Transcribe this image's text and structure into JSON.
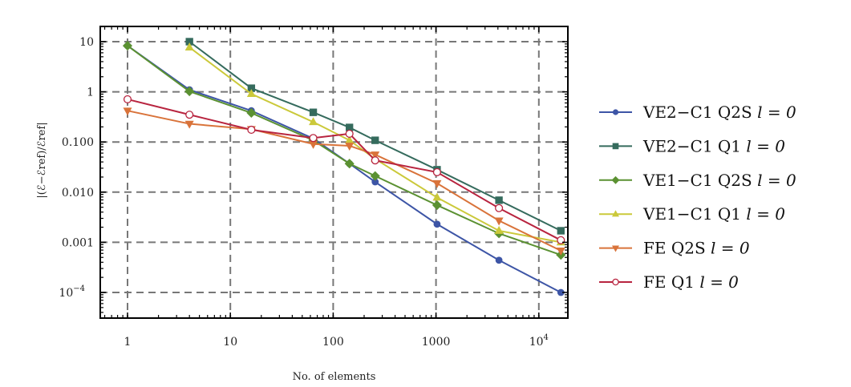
{
  "chart_data": {
    "type": "line",
    "xlabel": "No. of elements",
    "ylabel": "|(ℰ−ℰref)/ℰref|",
    "xscale": "log",
    "yscale": "log",
    "xlim": [
      0.6,
      20000
    ],
    "ylim": [
      3e-05,
      17
    ],
    "xticks": [
      {
        "v": 1,
        "label": "1"
      },
      {
        "v": 10,
        "label": "10"
      },
      {
        "v": 100,
        "label": "100"
      },
      {
        "v": 1000,
        "label": "1000"
      },
      {
        "v": 10000,
        "label": "10",
        "sup": "4"
      }
    ],
    "yticks": [
      {
        "v": 10,
        "label": "10"
      },
      {
        "v": 1,
        "label": "1"
      },
      {
        "v": 0.1,
        "label": "0.100"
      },
      {
        "v": 0.01,
        "label": "0.010"
      },
      {
        "v": 0.001,
        "label": "0.001"
      },
      {
        "v": 0.0001,
        "label": "10",
        "sup": "−4"
      }
    ],
    "grid": true,
    "legend_position": "right",
    "series": [
      {
        "name": "VE2−C1 Q2S",
        "suffix": "l = 0",
        "color": "#3d55a6",
        "marker": "circle",
        "x": [
          1,
          4,
          16,
          64,
          144,
          256,
          1024,
          4096,
          16384
        ],
        "y": [
          8.3,
          1.1,
          0.42,
          0.117,
          0.037,
          0.016,
          0.0023,
          0.00044,
          0.0001
        ]
      },
      {
        "name": "VE2−C1 Q1",
        "suffix": "l = 0",
        "color": "#356b5d",
        "marker": "square",
        "x": [
          4,
          16,
          64,
          144,
          256,
          1024,
          4096,
          16384
        ],
        "y": [
          10,
          1.18,
          0.39,
          0.195,
          0.108,
          0.028,
          0.0069,
          0.0017
        ]
      },
      {
        "name": "VE1−C1 Q2S",
        "suffix": "l = 0",
        "color": "#5b9132",
        "marker": "diamond",
        "x": [
          1,
          4,
          16,
          64,
          144,
          256,
          1024,
          4096,
          16384
        ],
        "y": [
          8.3,
          1.02,
          0.38,
          0.108,
          0.037,
          0.021,
          0.0055,
          0.0015,
          0.00056
        ]
      },
      {
        "name": "VE1−C1 Q1",
        "suffix": "l = 0",
        "color": "#cbc93a",
        "marker": "triangle-up",
        "x": [
          4,
          16,
          64,
          144,
          256,
          1024,
          4096,
          16384
        ],
        "y": [
          7.7,
          0.91,
          0.25,
          0.108,
          0.046,
          0.0078,
          0.0017,
          0.001
        ]
      },
      {
        "name": "FE Q2S",
        "suffix": "l = 0",
        "color": "#d9733a",
        "marker": "triangle-down",
        "x": [
          1,
          4,
          16,
          64,
          144,
          256,
          1024,
          4096,
          16384
        ],
        "y": [
          0.42,
          0.23,
          0.18,
          0.091,
          0.084,
          0.056,
          0.015,
          0.0027,
          0.00068
        ]
      },
      {
        "name": "FE Q1",
        "suffix": "l = 0",
        "color": "#b8243f",
        "marker": "open-circle",
        "x": [
          1,
          4,
          16,
          64,
          144,
          256,
          1024,
          4096,
          16384
        ],
        "y": [
          0.71,
          0.35,
          0.175,
          0.12,
          0.146,
          0.043,
          0.025,
          0.0048,
          0.0011
        ]
      }
    ]
  }
}
